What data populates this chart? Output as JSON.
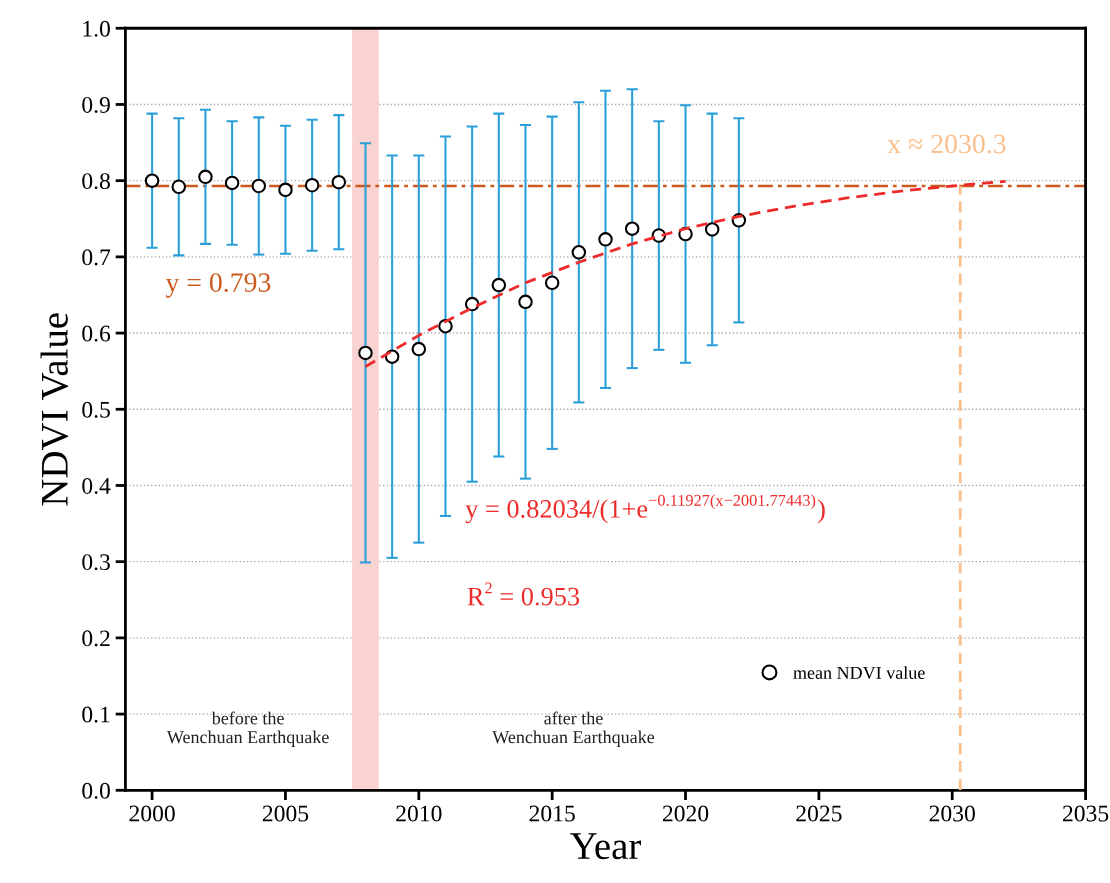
{
  "chart_data": {
    "type": "scatter",
    "xlabel": "Year",
    "ylabel": "NDVI Value",
    "xlim": [
      1999,
      2035
    ],
    "xticks": [
      2000,
      2005,
      2010,
      2015,
      2020,
      2025,
      2030,
      2035
    ],
    "ylim": [
      0,
      1
    ],
    "yticks": [
      {
        "value": 0,
        "label": "0.0"
      },
      {
        "value": 0.1,
        "label": "0.1"
      },
      {
        "value": 0.2,
        "label": "0.2"
      },
      {
        "value": 0.3,
        "label": "0.3"
      },
      {
        "value": 0.4,
        "label": "0.4"
      },
      {
        "value": 0.5,
        "label": "0.5"
      },
      {
        "value": 0.6,
        "label": "0.6"
      },
      {
        "value": 0.7,
        "label": "0.7"
      },
      {
        "value": 0.8,
        "label": "0.8"
      },
      {
        "value": 0.9,
        "label": "0.9"
      },
      {
        "value": 1,
        "label": "1.0"
      }
    ],
    "grid": "y",
    "legend": "bottom right",
    "series": [
      {
        "name": "mean NDVI value",
        "marker": "circle",
        "color": "#000000",
        "x": [
          2000,
          2001,
          2002,
          2003,
          2004,
          2005,
          2006,
          2007,
          2008,
          2009,
          2010,
          2011,
          2012,
          2013,
          2014,
          2015,
          2016,
          2017,
          2018,
          2019,
          2020,
          2021,
          2022
        ],
        "values": [
          0.8,
          0.792,
          0.805,
          0.797,
          0.793,
          0.788,
          0.794,
          0.798,
          0.574,
          0.569,
          0.579,
          0.609,
          0.638,
          0.663,
          0.641,
          0.666,
          0.706,
          0.723,
          0.737,
          0.728,
          0.73,
          0.736,
          0.748
        ],
        "errors": [
          0.088,
          0.09,
          0.088,
          0.081,
          0.09,
          0.084,
          0.086,
          0.088,
          0.275,
          0.264,
          0.254,
          0.249,
          0.233,
          0.225,
          0.232,
          0.218,
          0.197,
          0.195,
          0.183,
          0.15,
          0.169,
          0.152,
          0.134
        ]
      },
      {
        "type": "line",
        "color": "#ee2a2a",
        "line_style": "dashed",
        "x": [
          2008,
          2010,
          2012,
          2014,
          2016,
          2018,
          2020,
          2022,
          2024,
          2026,
          2028,
          2030.3,
          2032
        ],
        "values": [
          0.556,
          0.597,
          0.633,
          0.666,
          0.693,
          0.717,
          0.737,
          0.753,
          0.766,
          0.777,
          0.786,
          0.794,
          0.799
        ]
      },
      {
        "type": "line",
        "color": "#f9bf8c",
        "line_style": "dashed",
        "x": [
          2030.3,
          2030.3
        ],
        "values": [
          0,
          0.793
        ]
      }
    ],
    "ref_lines": [
      {
        "axis": "y",
        "value": 0.793,
        "color": "#cc5a1e",
        "line_style": "dashdot"
      }
    ],
    "bands": [
      {
        "axis": "x",
        "from": 2007.5,
        "to": 2008.5,
        "color": "#f9d2d2"
      }
    ],
    "annotations": [
      "y = 0.793",
      "x ≈ 2030.3",
      "y = 0.82034/(1+e$^{−0.11927(x−2001.77443)}$)",
      "R$^{2}$ = 0.953",
      "before the\nWenchuan Earthquake",
      "after the\nWenchuan Earthquake"
    ]
  }
}
